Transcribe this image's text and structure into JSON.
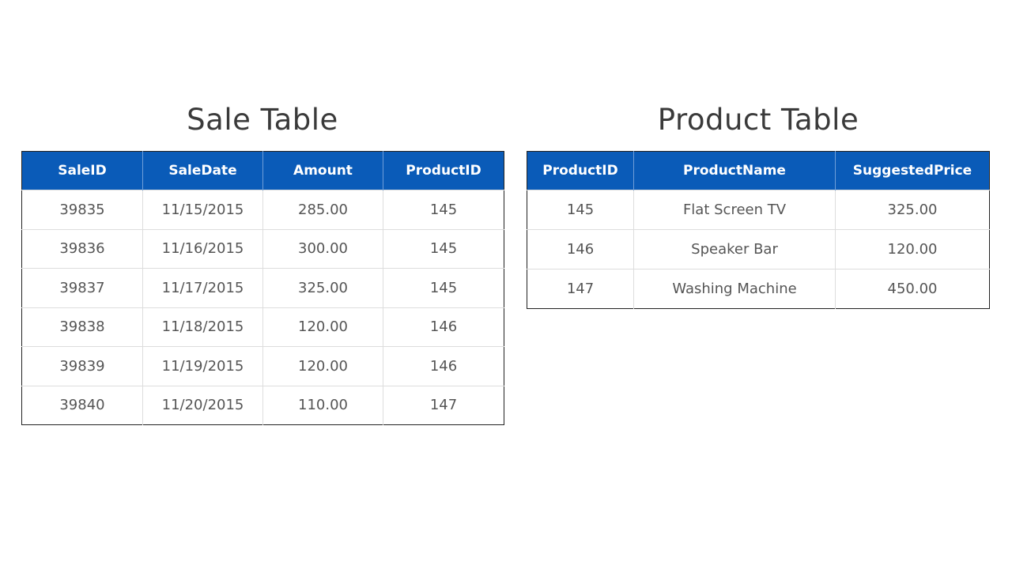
{
  "sale_table": {
    "title": "Sale Table",
    "columns": [
      "SaleID",
      "SaleDate",
      "Amount",
      "ProductID"
    ],
    "rows": [
      [
        "39835",
        "11/15/2015",
        "285.00",
        "145"
      ],
      [
        "39836",
        "11/16/2015",
        "300.00",
        "145"
      ],
      [
        "39837",
        "11/17/2015",
        "325.00",
        "145"
      ],
      [
        "39838",
        "11/18/2015",
        "120.00",
        "146"
      ],
      [
        "39839",
        "11/19/2015",
        "120.00",
        "146"
      ],
      [
        "39840",
        "11/20/2015",
        "110.00",
        "147"
      ]
    ]
  },
  "product_table": {
    "title": "Product Table",
    "columns": [
      "ProductID",
      "ProductName",
      "SuggestedPrice"
    ],
    "rows": [
      [
        "145",
        "Flat Screen TV",
        "325.00"
      ],
      [
        "146",
        "Speaker Bar",
        "120.00"
      ],
      [
        "147",
        "Washing Machine",
        "450.00"
      ]
    ]
  },
  "colors": {
    "header_bg": "#0a5bb8",
    "header_text": "#ffffff"
  }
}
